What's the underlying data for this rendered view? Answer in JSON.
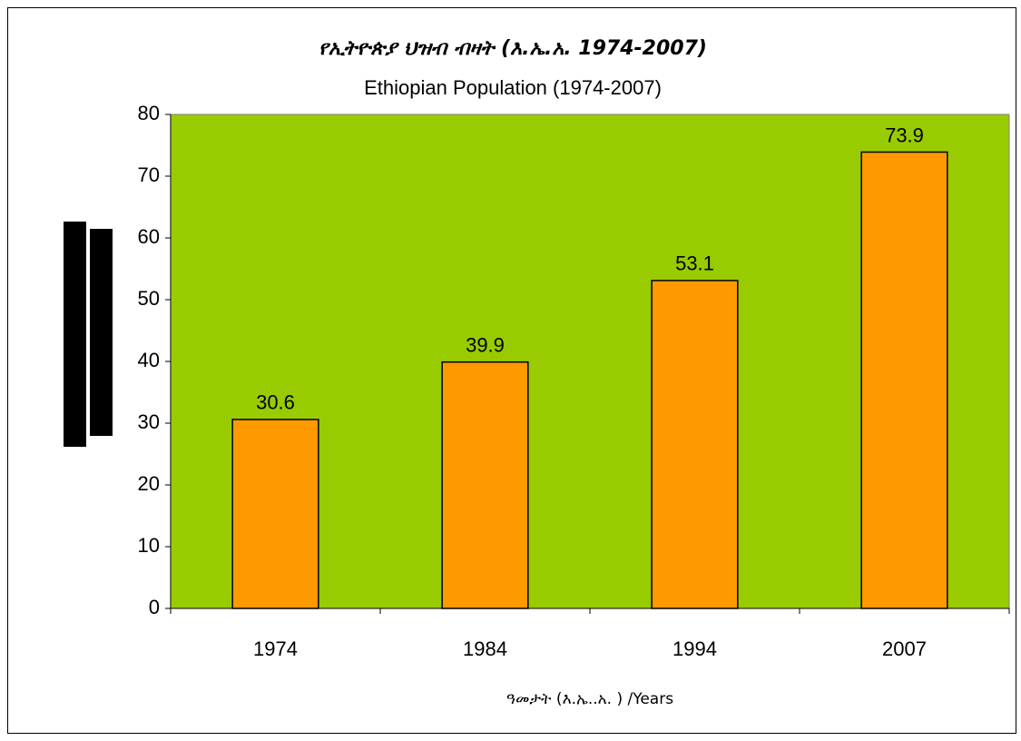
{
  "chart_data": {
    "type": "bar",
    "title": "የኢትዮጵያ ህዝብ ብዛት (እ.ኤ.አ. 1974-2007)",
    "subtitle": "Ethiopian Population (1974-2007)",
    "x_label": "ዓመታት (እ.ኤ..አ. ) /Years",
    "categories": [
      "1974",
      "1984",
      "1994",
      "2007"
    ],
    "values": [
      30.6,
      39.9,
      53.1,
      73.9
    ],
    "color": "#ff9900",
    "plot_background": "#99cc00",
    "ylim": [
      0,
      80
    ],
    "yticks": [
      0,
      10,
      20,
      30,
      40,
      50,
      60,
      70,
      80
    ]
  }
}
